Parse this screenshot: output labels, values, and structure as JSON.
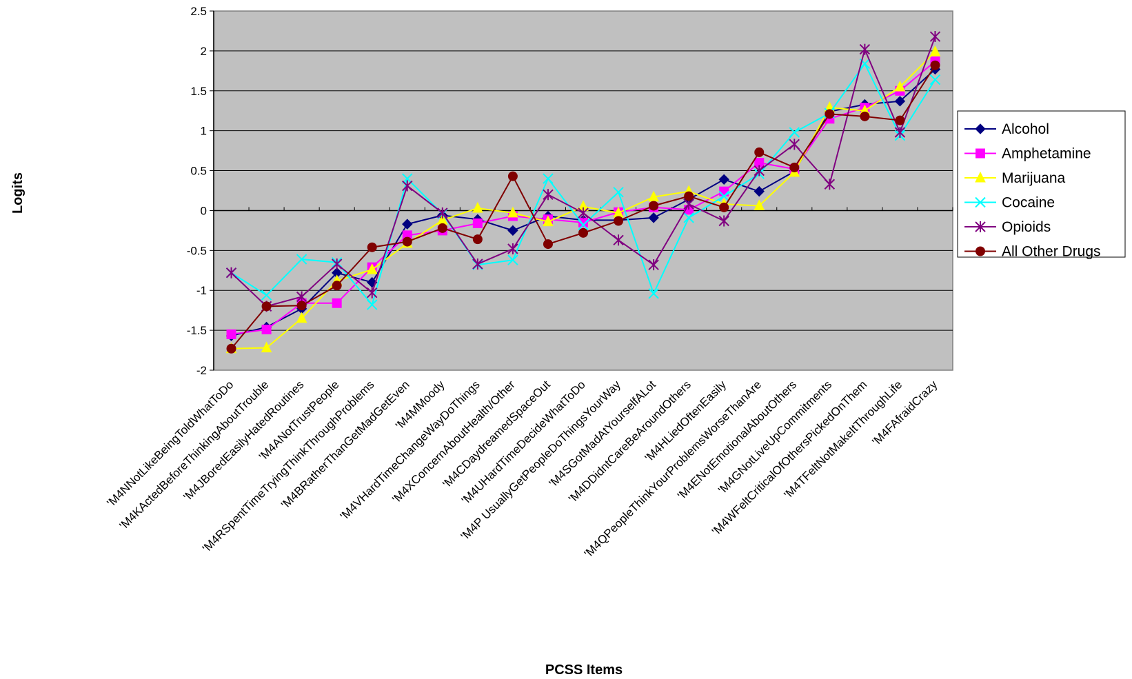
{
  "chart_data": {
    "type": "line",
    "title": "",
    "xlabel": "PCSS Items",
    "ylabel": "Logits",
    "ylim": [
      -2,
      2.5
    ],
    "ytick_step": 0.5,
    "ytick_labels": [
      "-2",
      "-1.5",
      "-1",
      "-0.5",
      "0",
      "0.5",
      "1",
      "1.5",
      "2",
      "2.5"
    ],
    "grid": true,
    "legend_position": "right",
    "plot_background": "#c0c0c0",
    "categories": [
      "'M4NNotLikeBeingToldWhatToDo",
      "'M4KActedBeforeThinkingAboutTrouble",
      "'M4JBoredEasilyHatedRoutines",
      "'M4ANotTrustPeople",
      "'M4RSpentTimeTryingThinkThroughProblems",
      "'M4BRatherThanGetMadGetEven",
      "'M4MMoody",
      "'M4VHardTimeChangeWayDoThings",
      "'M4XConcernAboutHealth/Other",
      "'M4CDaydreamedSpaceOut",
      "'M4UHardTimeDecideWhatToDo",
      "'M4P UsuallyGetPeopleDoThingsYourWay",
      "'M4SGotMadAtYourselfALot",
      "'M4DDidntCareBeAroundOthers",
      "'M4HLiedOftenEasily",
      "'M4QPeopleThinkYourProblemsWorseThanAre",
      "'M4ENotEmotionalAboutOthers",
      "'M4GNotLiveUpCommitments",
      "'M4WFeltCriticalOfOthersPickedOnThem",
      "'M4TFeltNotMakeItThroughLife",
      "'M4FAfraidCrazy"
    ],
    "series": [
      {
        "name": "Alcohol",
        "color": "#000080",
        "marker": "diamond",
        "values": [
          -1.57,
          -1.46,
          -1.23,
          -0.78,
          -0.9,
          -0.17,
          -0.06,
          -0.11,
          -0.25,
          -0.07,
          -0.12,
          -0.12,
          -0.09,
          0.14,
          0.39,
          0.24,
          0.49,
          1.24,
          1.33,
          1.37,
          1.77
        ]
      },
      {
        "name": "Amphetamine",
        "color": "#ff00ff",
        "marker": "square",
        "values": [
          -1.55,
          -1.49,
          -1.16,
          -1.16,
          -0.71,
          -0.31,
          -0.25,
          -0.16,
          -0.07,
          -0.11,
          -0.15,
          -0.02,
          0.04,
          0.01,
          0.24,
          0.6,
          0.52,
          1.15,
          1.29,
          1.5,
          1.87
        ]
      },
      {
        "name": "Marijuana",
        "color": "#ffff00",
        "marker": "triangle",
        "values": [
          -1.73,
          -1.72,
          -1.35,
          -0.88,
          -0.74,
          -0.41,
          -0.12,
          0.03,
          -0.03,
          -0.14,
          0.05,
          -0.03,
          0.17,
          0.24,
          0.08,
          0.06,
          0.48,
          1.29,
          1.25,
          1.55,
          1.99
        ]
      },
      {
        "name": "Cocaine",
        "color": "#00ffff",
        "marker": "x",
        "values": [
          -0.78,
          -1.06,
          -0.61,
          -0.65,
          -1.18,
          0.4,
          -0.04,
          -0.68,
          -0.62,
          0.4,
          -0.18,
          0.23,
          -1.04,
          -0.09,
          0.18,
          0.46,
          0.98,
          1.22,
          1.84,
          0.94,
          1.64
        ]
      },
      {
        "name": "Opioids",
        "color": "#800080",
        "marker": "star",
        "values": [
          -0.78,
          -1.2,
          -1.08,
          -0.67,
          -1.03,
          0.31,
          -0.03,
          -0.67,
          -0.48,
          0.2,
          -0.03,
          -0.37,
          -0.68,
          0.08,
          -0.13,
          0.5,
          0.83,
          0.33,
          2.02,
          0.98,
          2.18
        ]
      },
      {
        "name": "All Other Drugs",
        "color": "#800000",
        "marker": "circle",
        "values": [
          -1.73,
          -1.2,
          -1.19,
          -0.94,
          -0.46,
          -0.39,
          -0.22,
          -0.36,
          0.43,
          -0.42,
          -0.28,
          -0.13,
          0.06,
          0.18,
          0.04,
          0.73,
          0.54,
          1.21,
          1.18,
          1.13,
          1.82
        ]
      }
    ]
  }
}
